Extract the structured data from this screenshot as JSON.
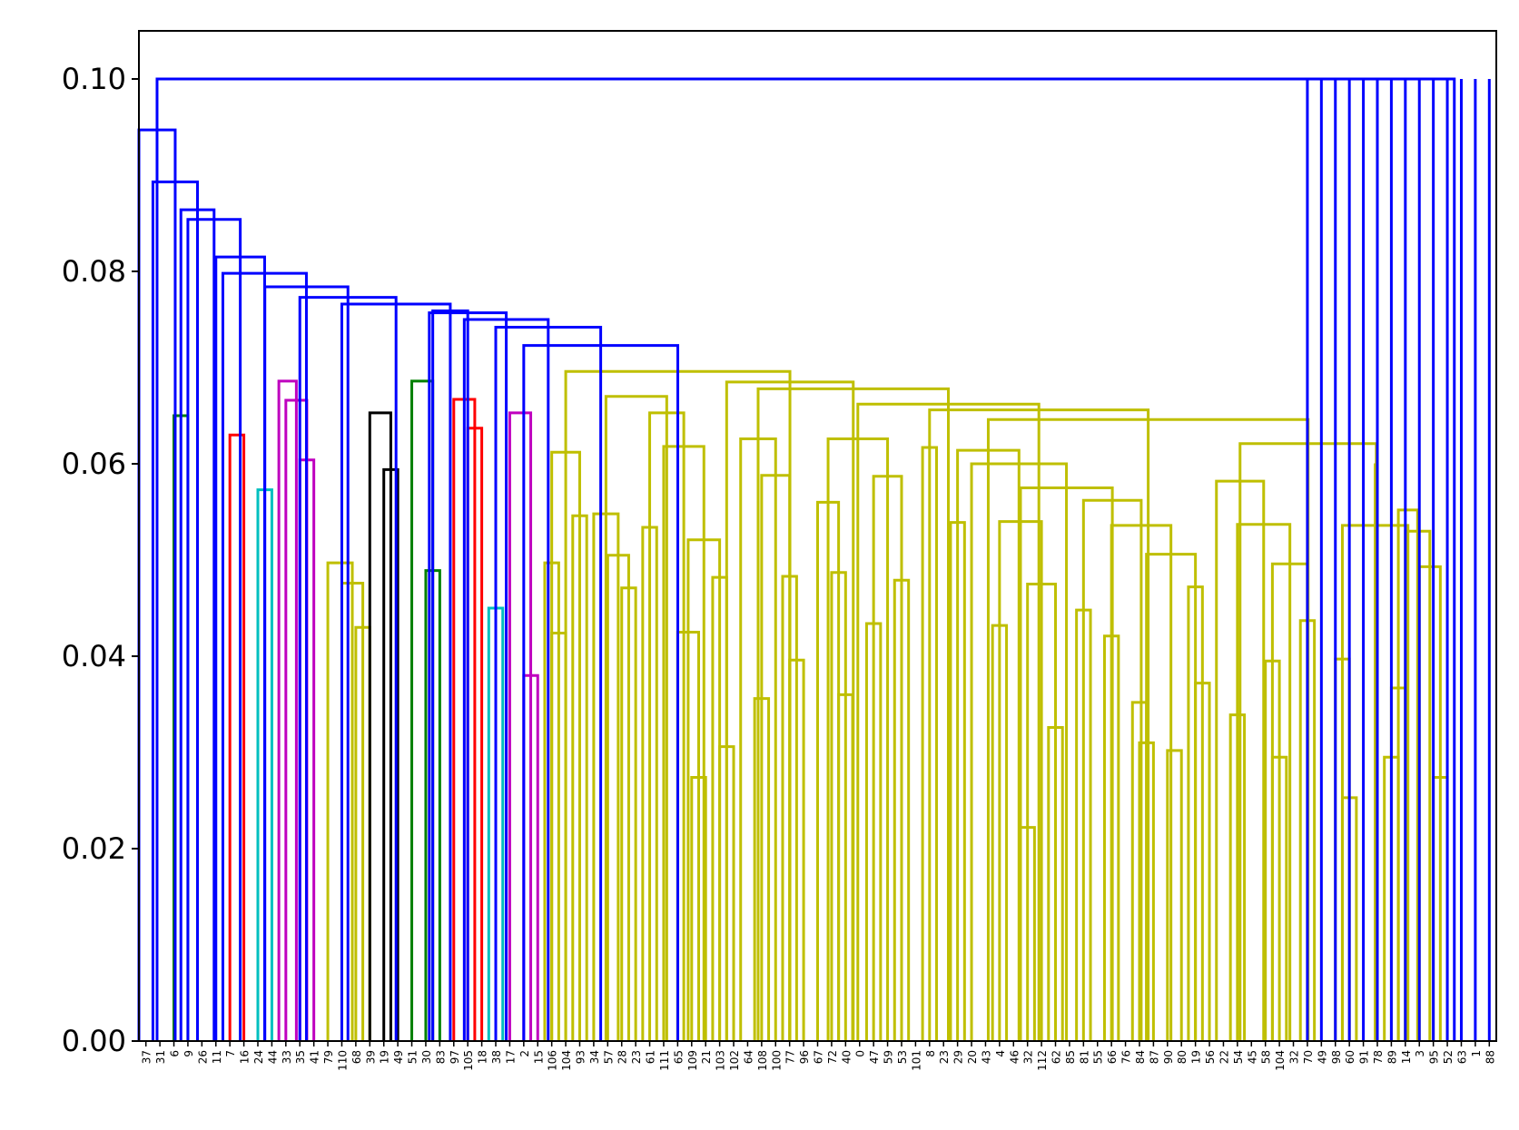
{
  "chart_data": {
    "type": "dendrogram",
    "title": "",
    "xlabel": "",
    "ylabel": "",
    "ylim": [
      0,
      0.105
    ],
    "yticks": [
      0.0,
      0.02,
      0.04,
      0.06,
      0.08,
      0.1
    ],
    "ytick_labels": [
      "0.00",
      "0.02",
      "0.04",
      "0.06",
      "0.08",
      "0.10"
    ],
    "grid": false,
    "legend": "none",
    "link_color_codes": {
      "b": "#0000ff",
      "g": "#008000",
      "r": "#ff0000",
      "c": "#00bfbf",
      "m": "#bf00bf",
      "y": "#bfbf00",
      "k": "#000000"
    },
    "leaves": [
      "37",
      "31",
      "6",
      "9",
      "26",
      "11",
      "7",
      "16",
      "24",
      "44",
      "33",
      "35",
      "41",
      "79",
      "110",
      "68",
      "39",
      "19",
      "49",
      "51",
      "30",
      "83",
      "97",
      "105",
      "18",
      "38",
      "17",
      "2",
      "15",
      "106",
      "104",
      "93",
      "34",
      "57",
      "28",
      "23",
      "61",
      "111",
      "65",
      "109",
      "21",
      "103",
      "102",
      "64",
      "108",
      "100",
      "77",
      "96",
      "67",
      "72",
      "40",
      "0",
      "47",
      "59",
      "53",
      "101",
      "8",
      "23",
      "29",
      "20",
      "43",
      "4",
      "46",
      "32",
      "112",
      "62",
      "85",
      "81",
      "55",
      "66",
      "76",
      "84",
      "87",
      "90",
      "80",
      "19",
      "56",
      "22",
      "54",
      "45",
      "58",
      "104",
      "32",
      "70",
      "49",
      "98",
      "60",
      "91",
      "78",
      "89",
      "14",
      "3",
      "95",
      "52",
      "63",
      "1",
      "88"
    ],
    "links": [
      {
        "left": 2,
        "right": 3,
        "height": 0.065,
        "color": "g"
      },
      {
        "left": 6,
        "right": 7,
        "height": 0.063,
        "color": "r"
      },
      {
        "left": 8,
        "right": 9,
        "height": 0.0573,
        "color": "c"
      },
      {
        "left": 11,
        "right": 12,
        "height": 0.0604,
        "color": "m"
      },
      {
        "left": 10,
        "right": 11.5,
        "height": 0.0666,
        "color": "m"
      },
      {
        "left": 9.5,
        "right": 10.75,
        "height": 0.0686,
        "color": "m"
      },
      {
        "left": 15,
        "right": 16,
        "height": 0.043,
        "color": "y"
      },
      {
        "left": 14,
        "right": 15.5,
        "height": 0.0476,
        "color": "y"
      },
      {
        "left": 13,
        "right": 14.75,
        "height": 0.0497,
        "color": "y"
      },
      {
        "left": 17,
        "right": 18,
        "height": 0.0594,
        "color": "k"
      },
      {
        "left": 16,
        "right": 17.5,
        "height": 0.0653,
        "color": "k"
      },
      {
        "left": 20,
        "right": 21,
        "height": 0.0489,
        "color": "g"
      },
      {
        "left": 19,
        "right": 20.5,
        "height": 0.0686,
        "color": "g"
      },
      {
        "left": 23,
        "right": 24,
        "height": 0.0637,
        "color": "r"
      },
      {
        "left": 22,
        "right": 23.5,
        "height": 0.0667,
        "color": "r"
      },
      {
        "left": 24.5,
        "right": 25.5,
        "height": 0.045,
        "color": "c"
      },
      {
        "left": 27,
        "right": 28,
        "height": 0.038,
        "color": "m"
      },
      {
        "left": 26,
        "right": 27.5,
        "height": 0.0653,
        "color": "m"
      },
      {
        "left": 29,
        "right": 30,
        "height": 0.0424,
        "color": "y"
      },
      {
        "left": 28.5,
        "right": 29.5,
        "height": 0.0497,
        "color": "y"
      },
      {
        "left": 30.5,
        "right": 31.5,
        "height": 0.0546,
        "color": "y"
      },
      {
        "left": 29,
        "right": 31,
        "height": 0.0612,
        "color": "y"
      },
      {
        "left": 34,
        "right": 35,
        "height": 0.0471,
        "color": "y"
      },
      {
        "left": 33,
        "right": 34.5,
        "height": 0.0505,
        "color": "y"
      },
      {
        "left": 32,
        "right": 33.75,
        "height": 0.0548,
        "color": "y"
      },
      {
        "left": 35.5,
        "right": 36.5,
        "height": 0.0534,
        "color": "y"
      },
      {
        "left": 39,
        "right": 40,
        "height": 0.0274,
        "color": "y"
      },
      {
        "left": 38,
        "right": 39.5,
        "height": 0.0425,
        "color": "y"
      },
      {
        "left": 41,
        "right": 42,
        "height": 0.0306,
        "color": "y"
      },
      {
        "left": 40.5,
        "right": 41.5,
        "height": 0.0482,
        "color": "y"
      },
      {
        "left": 38.75,
        "right": 41,
        "height": 0.0521,
        "color": "y"
      },
      {
        "left": 37,
        "right": 39.875,
        "height": 0.0618,
        "color": "y"
      },
      {
        "left": 36,
        "right": 38.4375,
        "height": 0.0653,
        "color": "y"
      },
      {
        "left": 32.875,
        "right": 37.21875,
        "height": 0.067,
        "color": "y"
      },
      {
        "left": 43.5,
        "right": 44.5,
        "height": 0.0356,
        "color": "y"
      },
      {
        "left": 46,
        "right": 47,
        "height": 0.0396,
        "color": "y"
      },
      {
        "left": 45.5,
        "right": 46.5,
        "height": 0.0483,
        "color": "y"
      },
      {
        "left": 44,
        "right": 46,
        "height": 0.0588,
        "color": "y"
      },
      {
        "left": 42.5,
        "right": 45,
        "height": 0.0626,
        "color": "y"
      },
      {
        "left": 49.5,
        "right": 50.5,
        "height": 0.036,
        "color": "y"
      },
      {
        "left": 49,
        "right": 50,
        "height": 0.0487,
        "color": "y"
      },
      {
        "left": 48,
        "right": 49.5,
        "height": 0.056,
        "color": "y"
      },
      {
        "left": 51.5,
        "right": 52.5,
        "height": 0.0434,
        "color": "y"
      },
      {
        "left": 53.5,
        "right": 54.5,
        "height": 0.0479,
        "color": "y"
      },
      {
        "left": 52,
        "right": 54,
        "height": 0.0587,
        "color": "y"
      },
      {
        "left": 48.75,
        "right": 53,
        "height": 0.0626,
        "color": "y"
      },
      {
        "left": 55.5,
        "right": 56.5,
        "height": 0.0617,
        "color": "y"
      },
      {
        "left": 57.5,
        "right": 58.5,
        "height": 0.0539,
        "color": "y"
      },
      {
        "left": 60.5,
        "right": 61.5,
        "height": 0.0432,
        "color": "y"
      },
      {
        "left": 62.5,
        "right": 63.5,
        "height": 0.0222,
        "color": "y"
      },
      {
        "left": 64.5,
        "right": 65.5,
        "height": 0.0326,
        "color": "y"
      },
      {
        "left": 63,
        "right": 65,
        "height": 0.0475,
        "color": "y"
      },
      {
        "left": 61,
        "right": 64,
        "height": 0.054,
        "color": "y"
      },
      {
        "left": 66.5,
        "right": 67.5,
        "height": 0.0448,
        "color": "y"
      },
      {
        "left": 68.5,
        "right": 69.5,
        "height": 0.0421,
        "color": "y"
      },
      {
        "left": 70.5,
        "right": 71.5,
        "height": 0.0352,
        "color": "y"
      },
      {
        "left": 71,
        "right": 72,
        "height": 0.031,
        "color": "y"
      },
      {
        "left": 73,
        "right": 74,
        "height": 0.0302,
        "color": "y"
      },
      {
        "left": 75,
        "right": 76,
        "height": 0.0372,
        "color": "y"
      },
      {
        "left": 74.5,
        "right": 75.5,
        "height": 0.0472,
        "color": "y"
      },
      {
        "left": 71.5,
        "right": 75,
        "height": 0.0506,
        "color": "y"
      },
      {
        "left": 69,
        "right": 73.25,
        "height": 0.0536,
        "color": "y"
      },
      {
        "left": 67,
        "right": 71.125,
        "height": 0.0562,
        "color": "y"
      },
      {
        "left": 62.5,
        "right": 69.0625,
        "height": 0.0575,
        "color": "y"
      },
      {
        "left": 59,
        "right": 65.78125,
        "height": 0.06,
        "color": "y"
      },
      {
        "left": 58,
        "right": 62.390625,
        "height": 0.0614,
        "color": "y"
      },
      {
        "left": 77.5,
        "right": 78.5,
        "height": 0.0339,
        "color": "y"
      },
      {
        "left": 80.5,
        "right": 81.5,
        "height": 0.0295,
        "color": "y"
      },
      {
        "left": 80,
        "right": 81,
        "height": 0.0395,
        "color": "y"
      },
      {
        "left": 82.5,
        "right": 83.5,
        "height": 0.0437,
        "color": "y"
      },
      {
        "left": 80.5,
        "right": 83,
        "height": 0.0496,
        "color": "y"
      },
      {
        "left": 78,
        "right": 81.75,
        "height": 0.0537,
        "color": "y"
      },
      {
        "left": 76.5,
        "right": 79.875,
        "height": 0.0582,
        "color": "y"
      },
      {
        "left": 85.5,
        "right": 86.5,
        "height": 0.0253,
        "color": "y"
      },
      {
        "left": 85,
        "right": 86,
        "height": 0.0397,
        "color": "y"
      },
      {
        "left": 88.5,
        "right": 89.5,
        "height": 0.0295,
        "color": "y"
      },
      {
        "left": 89,
        "right": 90,
        "height": 0.0367,
        "color": "y"
      },
      {
        "left": 92,
        "right": 93,
        "height": 0.0274,
        "color": "y"
      },
      {
        "left": 91,
        "right": 92.5,
        "height": 0.0493,
        "color": "y"
      },
      {
        "left": 90,
        "right": 91.75,
        "height": 0.053,
        "color": "y"
      },
      {
        "left": 89.5,
        "right": 90.875,
        "height": 0.0552,
        "color": "y"
      },
      {
        "left": 85.5,
        "right": 90.1875,
        "height": 0.0536,
        "color": "y"
      },
      {
        "left": 87.84375,
        "right": 88,
        "height": 0.0599,
        "color": "y"
      },
      {
        "left": 78.1875,
        "right": 87.921875,
        "height": 0.0621,
        "color": "y"
      },
      {
        "left": 60.1953125,
        "right": 83.0546875,
        "height": 0.0646,
        "color": "y"
      },
      {
        "left": 56,
        "right": 71.625,
        "height": 0.0656,
        "color": "y"
      },
      {
        "left": 50.875,
        "right": 63.8125,
        "height": 0.0662,
        "color": "y"
      },
      {
        "left": 43.75,
        "right": 57.34375,
        "height": 0.0678,
        "color": "y"
      },
      {
        "left": 41.5,
        "right": 50.546875,
        "height": 0.0685,
        "color": "y"
      },
      {
        "left": 30,
        "right": 46.0234375,
        "height": 0.0696,
        "color": "y"
      }
    ],
    "blue_links": [
      {
        "left": 27,
        "right": 38.01,
        "height": 0.0723,
        "color": "b"
      },
      {
        "left": 25,
        "right": 32.5,
        "height": 0.0742,
        "color": "b"
      },
      {
        "left": 22.75,
        "right": 28.75,
        "height": 0.075,
        "color": "b"
      },
      {
        "left": 20.25,
        "right": 25.75,
        "height": 0.0757,
        "color": "b"
      },
      {
        "left": 20.5,
        "right": 23,
        "height": 0.0759,
        "color": "b"
      },
      {
        "left": 14,
        "right": 21.75,
        "height": 0.0766,
        "color": "b"
      },
      {
        "left": 11,
        "right": 17.875,
        "height": 0.0773,
        "color": "b"
      },
      {
        "left": 8.5,
        "right": 14.4375,
        "height": 0.0784,
        "color": "b"
      },
      {
        "left": 5.5,
        "right": 11.46875,
        "height": 0.0798,
        "color": "b"
      },
      {
        "left": 5,
        "right": 8.484375,
        "height": 0.0815,
        "color": "b"
      },
      {
        "left": 3,
        "right": 6.7421875,
        "height": 0.0854,
        "color": "b"
      },
      {
        "left": 2.5,
        "right": 4.87109375,
        "height": 0.0864,
        "color": "b"
      },
      {
        "left": 0.5,
        "right": 3.685546875,
        "height": 0.0893,
        "color": "b"
      },
      {
        "left": -0.5,
        "right": 2.0927734375,
        "height": 0.0947,
        "color": "b"
      },
      {
        "left": 0.79638671875,
        "right": 93.5,
        "height": 0.1,
        "color": "b"
      }
    ]
  }
}
